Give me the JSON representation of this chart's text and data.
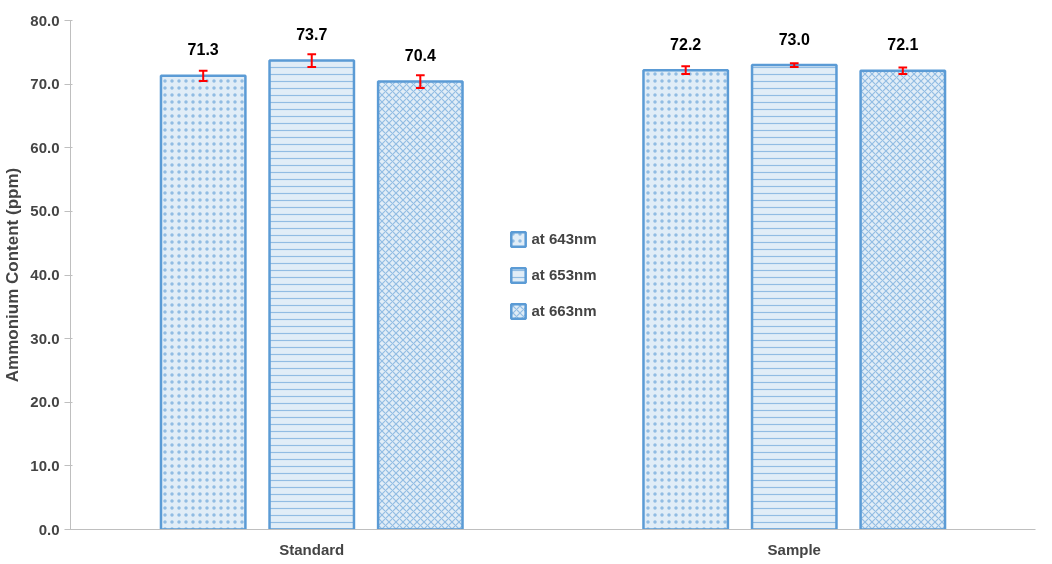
{
  "chart_data": {
    "type": "bar",
    "ylabel": "Ammonium Content (ppm)",
    "categories": [
      "Standard",
      "Sample"
    ],
    "series": [
      {
        "name": "at 643nm",
        "color": "#5b9bd5",
        "values": [
          71.3,
          72.2
        ],
        "errors": [
          0.8,
          0.6
        ],
        "value_labels": [
          "71.3",
          "72.2"
        ]
      },
      {
        "name": "at 653nm",
        "color": "#5b9bd5",
        "values": [
          73.7,
          73.0
        ],
        "errors": [
          1.0,
          0.3
        ],
        "value_labels": [
          "73.7",
          "73.0"
        ]
      },
      {
        "name": "at 663nm",
        "color": "#5b9bd5",
        "values": [
          70.4,
          72.1
        ],
        "errors": [
          1.0,
          0.5
        ],
        "value_labels": [
          "70.4",
          "72.1"
        ]
      }
    ],
    "ylim": [
      0,
      80
    ],
    "yticks": [
      {
        "value": 0,
        "label": "0.0"
      },
      {
        "value": 10,
        "label": "10.0"
      },
      {
        "value": 20,
        "label": "20.0"
      },
      {
        "value": 30,
        "label": "30.0"
      },
      {
        "value": 40,
        "label": "40.0"
      },
      {
        "value": 50,
        "label": "50.0"
      },
      {
        "value": 60,
        "label": "60.0"
      },
      {
        "value": 70,
        "label": "70.0"
      },
      {
        "value": 80,
        "label": "80.0"
      }
    ],
    "grid": false,
    "legend": "center"
  }
}
